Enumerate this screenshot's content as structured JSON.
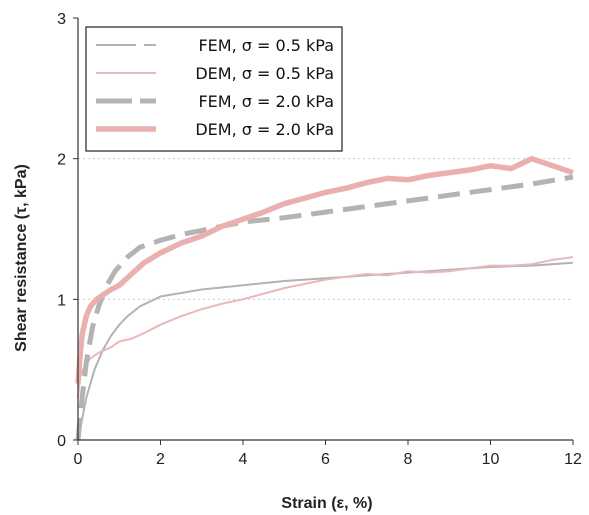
{
  "chart_data": {
    "type": "line",
    "xlabel": "Strain (ε, %)",
    "ylabel": "Shear resistance (τ, kPa)",
    "xlim": [
      0,
      12
    ],
    "ylim": [
      0,
      3
    ],
    "xticks": [
      "0",
      "2",
      "4",
      "6",
      "8",
      "10",
      "12"
    ],
    "yticks": [
      "0",
      "1",
      "2",
      "3"
    ],
    "grid": "horizontal dotted at 1 and 2",
    "legend_position": "top-left",
    "series": [
      {
        "name": "FEM, σ = 0.5 kPa",
        "color": "#b3b3b3",
        "style": "thin",
        "x": [
          0,
          0.1,
          0.2,
          0.4,
          0.6,
          0.8,
          1.0,
          1.2,
          1.5,
          2,
          3,
          4,
          5,
          6,
          7,
          8,
          9,
          10,
          11,
          12
        ],
        "y": [
          0,
          0.15,
          0.3,
          0.5,
          0.64,
          0.74,
          0.82,
          0.88,
          0.95,
          1.02,
          1.07,
          1.1,
          1.13,
          1.15,
          1.17,
          1.19,
          1.21,
          1.23,
          1.24,
          1.26
        ]
      },
      {
        "name": "DEM, σ = 0.5 kPa",
        "color": "#eab8b8",
        "style": "thin",
        "x": [
          0,
          0.05,
          0.15,
          0.3,
          0.5,
          0.8,
          1.0,
          1.3,
          1.6,
          2,
          2.5,
          3,
          3.5,
          4,
          4.5,
          5,
          5.5,
          6,
          6.5,
          7,
          7.5,
          8,
          8.5,
          9,
          9.5,
          10,
          10.5,
          11,
          11.5,
          12
        ],
        "y": [
          0.3,
          0.45,
          0.52,
          0.58,
          0.62,
          0.66,
          0.7,
          0.72,
          0.76,
          0.82,
          0.88,
          0.93,
          0.97,
          1.0,
          1.04,
          1.08,
          1.11,
          1.14,
          1.16,
          1.18,
          1.17,
          1.2,
          1.19,
          1.2,
          1.22,
          1.24,
          1.24,
          1.25,
          1.28,
          1.3
        ]
      },
      {
        "name": "FEM, σ = 2.0 kPa",
        "color": "#b3b3b3",
        "style": "thick-dashed",
        "x": [
          0,
          0.1,
          0.2,
          0.35,
          0.5,
          0.7,
          0.9,
          1.2,
          1.5,
          2,
          2.5,
          3,
          3.5,
          4,
          5,
          6,
          7,
          8,
          9,
          10,
          11,
          12
        ],
        "y": [
          0,
          0.3,
          0.55,
          0.8,
          0.95,
          1.1,
          1.2,
          1.3,
          1.37,
          1.42,
          1.46,
          1.49,
          1.52,
          1.55,
          1.58,
          1.62,
          1.66,
          1.7,
          1.74,
          1.78,
          1.82,
          1.87
        ]
      },
      {
        "name": "DEM, σ = 2.0 kPa",
        "color": "#eab0b0",
        "style": "thick",
        "x": [
          0,
          0.05,
          0.1,
          0.2,
          0.3,
          0.45,
          0.6,
          0.8,
          1.0,
          1.3,
          1.6,
          2,
          2.5,
          3,
          3.5,
          4,
          4.5,
          5,
          5.5,
          6,
          6.5,
          7,
          7.5,
          8,
          8.5,
          9,
          9.5,
          10,
          10.5,
          11,
          11.5,
          12
        ],
        "y": [
          0.4,
          0.6,
          0.75,
          0.88,
          0.95,
          1.0,
          1.03,
          1.07,
          1.1,
          1.18,
          1.26,
          1.33,
          1.4,
          1.45,
          1.52,
          1.57,
          1.62,
          1.68,
          1.72,
          1.76,
          1.79,
          1.83,
          1.86,
          1.85,
          1.88,
          1.9,
          1.92,
          1.95,
          1.93,
          2.0,
          1.95,
          1.9
        ]
      }
    ]
  }
}
